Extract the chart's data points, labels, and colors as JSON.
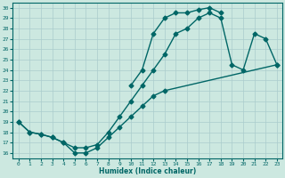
{
  "xlabel": "Humidex (Indice chaleur)",
  "xlim": [
    -0.5,
    23.5
  ],
  "ylim": [
    15.5,
    30.5
  ],
  "xticks": [
    0,
    1,
    2,
    3,
    4,
    5,
    6,
    7,
    8,
    9,
    10,
    11,
    12,
    13,
    14,
    15,
    16,
    17,
    18,
    19,
    20,
    21,
    22,
    23
  ],
  "yticks": [
    16,
    17,
    18,
    19,
    20,
    21,
    22,
    23,
    24,
    25,
    26,
    27,
    28,
    29,
    30
  ],
  "background_color": "#cce8e0",
  "grid_color": "#aacccc",
  "line_color": "#006666",
  "curve_upper_x": [
    10,
    11,
    12,
    13,
    14,
    15,
    16,
    17,
    18
  ],
  "curve_upper_y": [
    22.5,
    24.0,
    27.5,
    29.0,
    29.5,
    29.5,
    29.8,
    30.0,
    29.5
  ],
  "curve_mid_x": [
    0,
    1,
    2,
    3,
    4,
    5,
    6,
    7,
    8,
    9,
    10,
    11,
    12,
    13,
    14,
    15,
    16,
    17,
    18,
    19,
    20,
    21,
    22,
    23
  ],
  "curve_mid_y": [
    19.0,
    18.0,
    17.8,
    17.5,
    17.0,
    16.5,
    16.5,
    16.8,
    18.0,
    19.5,
    21.0,
    22.5,
    24.0,
    25.5,
    27.5,
    28.0,
    29.0,
    29.5,
    29.0,
    24.5,
    24.0,
    27.5,
    27.0,
    24.5
  ],
  "curve_lower_x": [
    0,
    1,
    2,
    3,
    4,
    5,
    6,
    7,
    8,
    9,
    10,
    11,
    12,
    13,
    23
  ],
  "curve_lower_y": [
    19.0,
    18.0,
    17.8,
    17.5,
    17.0,
    16.0,
    16.0,
    16.5,
    17.5,
    18.5,
    19.5,
    20.5,
    21.5,
    22.0,
    24.5
  ],
  "markersize": 2.5,
  "linewidth": 1.0
}
